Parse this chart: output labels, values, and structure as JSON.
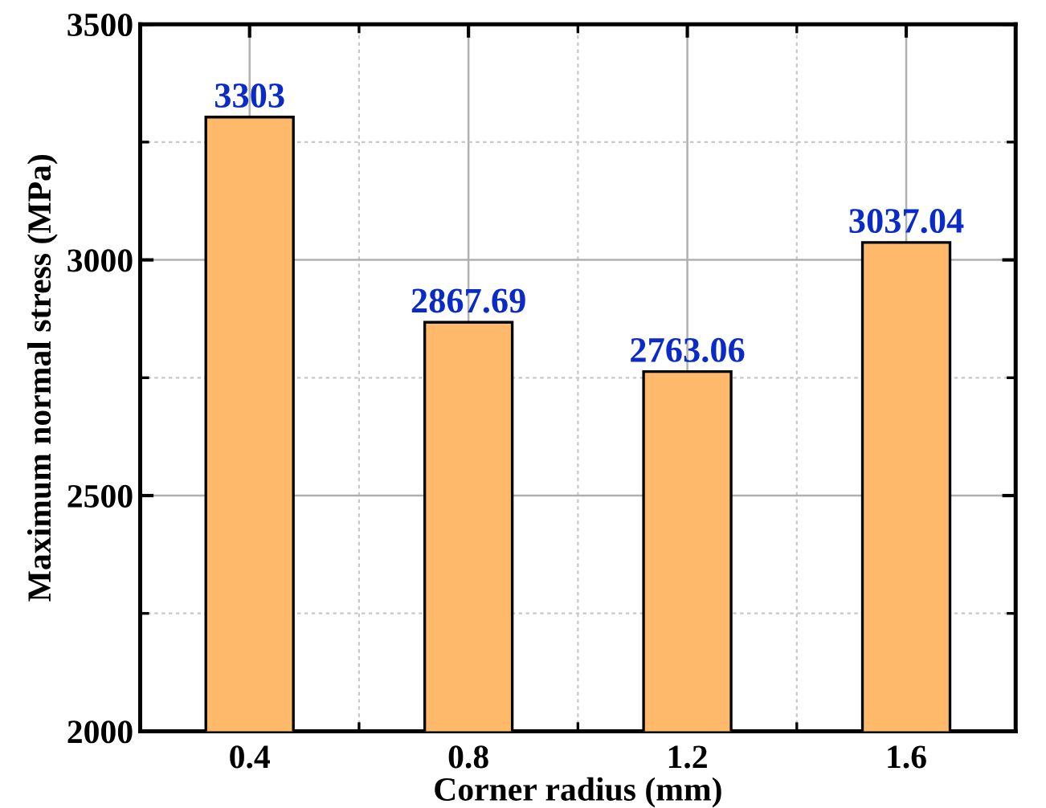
{
  "chart_data": {
    "type": "bar",
    "xlabel": "Corner radius (mm)",
    "ylabel": "Maximum normal stress (MPa)",
    "categories": [
      "0.4",
      "0.8",
      "1.2",
      "1.6"
    ],
    "values": [
      3303,
      2867.69,
      2763.06,
      3037.04
    ],
    "color": "#ffb96a",
    "ylim": [
      2000,
      3500
    ],
    "yticks": [
      2000,
      {
        "value": 2250,
        "label": null
      },
      2500,
      {
        "value": 2750,
        "label": null
      },
      3000,
      {
        "value": 3250,
        "label": null
      },
      3500
    ],
    "grid": true,
    "data_labels": true
  }
}
